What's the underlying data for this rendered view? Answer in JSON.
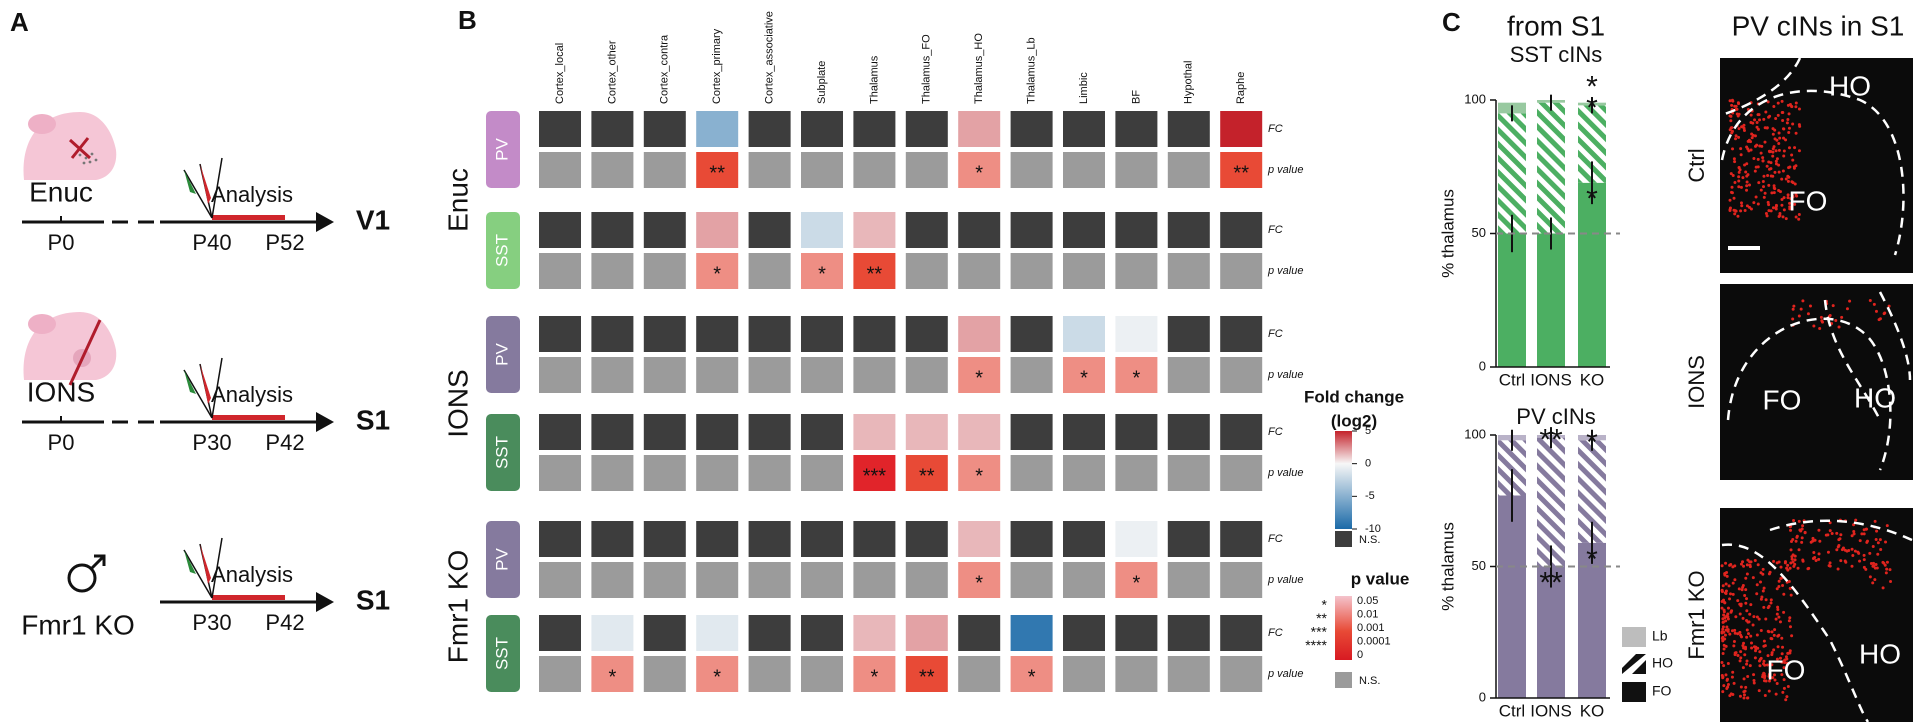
{
  "panel_a": {
    "label": "A",
    "rows": [
      {
        "name": "Enuc",
        "start": "P0",
        "t1": "P40",
        "t2": "P52",
        "analysis": "Analysis",
        "area": "V1"
      },
      {
        "name": "IONS",
        "start": "P0",
        "t1": "P30",
        "t2": "P42",
        "analysis": "Analysis",
        "area": "S1"
      },
      {
        "name": "Fmr1 KO",
        "t1": "P30",
        "t2": "P42",
        "analysis": "Analysis",
        "area": "S1"
      }
    ]
  },
  "panel_b": {
    "label": "B",
    "columns": [
      "Cortex_local",
      "Cortex_other",
      "Cortex_contra",
      "Cortex_primary",
      "Cortex_associative",
      "Subplate",
      "Thalamus",
      "Thalamus_FO",
      "Thalamus_HO",
      "Thalamus_Lb",
      "Limbic",
      "BF",
      "Hypothal",
      "Raphe"
    ],
    "row_labels": {
      "fc": "FC",
      "p": "p value"
    },
    "groups": [
      {
        "name": "Enuc",
        "rows": [
          {
            "cell_type": "PV",
            "color": "#c38bc8",
            "fc": [
              null,
              null,
              null,
              -5,
              null,
              null,
              null,
              null,
              2,
              null,
              null,
              null,
              null,
              5
            ],
            "p": [
              null,
              null,
              null,
              "**",
              null,
              null,
              null,
              null,
              "*",
              null,
              null,
              null,
              null,
              "**"
            ]
          },
          {
            "cell_type": "SST",
            "color": "#86cf80",
            "fc": [
              null,
              null,
              null,
              2,
              null,
              -2,
              1.5,
              null,
              null,
              null,
              null,
              null,
              null,
              null
            ],
            "p": [
              null,
              null,
              null,
              "*",
              null,
              "*",
              "**",
              null,
              null,
              null,
              null,
              null,
              null,
              null
            ]
          }
        ]
      },
      {
        "name": "IONS",
        "rows": [
          {
            "cell_type": "PV",
            "color": "#857a9e",
            "fc": [
              null,
              null,
              null,
              null,
              null,
              null,
              null,
              null,
              2,
              null,
              -2,
              -0.5,
              null,
              null
            ],
            "p": [
              null,
              null,
              null,
              null,
              null,
              null,
              null,
              null,
              "*",
              null,
              "*",
              "*",
              null,
              null
            ]
          },
          {
            "cell_type": "SST",
            "color": "#4a8c5c",
            "fc": [
              null,
              null,
              null,
              null,
              null,
              null,
              1.5,
              1.5,
              1.5,
              null,
              null,
              null,
              null,
              null
            ],
            "p": [
              null,
              null,
              null,
              null,
              null,
              null,
              "***",
              "**",
              "*",
              null,
              null,
              null,
              null,
              null
            ]
          }
        ]
      },
      {
        "name": "Fmr1 KO",
        "rows": [
          {
            "cell_type": "PV",
            "color": "#857a9e",
            "fc": [
              null,
              null,
              null,
              null,
              null,
              null,
              null,
              null,
              1.5,
              null,
              null,
              -0.5,
              null,
              null
            ],
            "p": [
              null,
              null,
              null,
              null,
              null,
              null,
              null,
              null,
              "*",
              null,
              null,
              "*",
              null,
              null
            ]
          },
          {
            "cell_type": "SST",
            "color": "#4a8c5c",
            "fc": [
              null,
              -1,
              null,
              -1,
              null,
              null,
              1.5,
              2,
              null,
              -9,
              null,
              null,
              null,
              null
            ],
            "p": [
              null,
              "*",
              null,
              "*",
              null,
              null,
              "*",
              "**",
              null,
              "*",
              null,
              null,
              null,
              null
            ]
          }
        ]
      }
    ],
    "fc_legend": {
      "title_lines": [
        "Fold change",
        "(log2)"
      ],
      "lim": [
        -10,
        5
      ],
      "ticks": [
        5,
        0,
        -5,
        -10
      ],
      "ns": "N.S.",
      "ns_color": "#3d3d3d",
      "low_color": "#1b6aa8",
      "mid_color": "#f7f7f7",
      "high_color": "#c4222b"
    },
    "p_legend": {
      "title": "p value",
      "stars": [
        "*",
        "**",
        "***",
        "****"
      ],
      "labels": [
        0.05,
        0.01,
        0.001,
        0.0001,
        0
      ],
      "colors": [
        "#ee8e84",
        "#e84a36",
        "#e1242a",
        "#d81a22"
      ],
      "ns": "N.S.",
      "ns_color": "#9b9b9b"
    }
  },
  "panel_c": {
    "label": "C",
    "title": "from S1",
    "charts": [
      {
        "title": "SST cINs",
        "ylabel": "% thalamus",
        "categories": [
          "Ctrl",
          "IONS",
          "KO"
        ],
        "ylim": [
          0,
          100
        ],
        "yticks": [
          0,
          50,
          100
        ],
        "reference": 50,
        "series": [
          {
            "name": "FO",
            "color": "#4caf62",
            "values": [
              50,
              50,
              69
            ],
            "errors": [
              7,
              6,
              8
            ],
            "stars": [
              null,
              null,
              "*"
            ]
          },
          {
            "name": "HO",
            "color": "#4caf62",
            "hatch": true,
            "values": [
              45,
              49,
              29
            ],
            "errors": [
              3,
              3,
              3
            ],
            "stars": [
              null,
              null,
              "*"
            ]
          },
          {
            "name": "Lb",
            "color": "#98c9a0",
            "values": [
              4,
              1,
              1
            ],
            "stars": [
              null,
              null,
              "*"
            ]
          }
        ]
      },
      {
        "title": "PV cINs",
        "ylabel": "% thalamus",
        "categories": [
          "Ctrl",
          "IONS",
          "KO"
        ],
        "ylim": [
          0,
          100
        ],
        "yticks": [
          0,
          50,
          100
        ],
        "reference": 50,
        "series": [
          {
            "name": "FO",
            "color": "#857a9e",
            "values": [
              77,
              50,
              59
            ],
            "errors": [
              10,
              8,
              8
            ],
            "stars": [
              null,
              "**",
              "*"
            ]
          },
          {
            "name": "HO",
            "color": "#857a9e",
            "hatch": true,
            "values": [
              21,
              49,
              39
            ],
            "errors": [
              4,
              4,
              4
            ],
            "stars": [
              null,
              "**",
              "*"
            ]
          },
          {
            "name": "Lb",
            "color": "#b9b2c8",
            "values": [
              2,
              1,
              2
            ]
          }
        ]
      }
    ],
    "images": {
      "title": "PV cINs in S1",
      "panels": [
        {
          "label": "Ctrl",
          "regions": [
            "HO",
            "FO"
          ]
        },
        {
          "label": "IONS",
          "regions": [
            "FO",
            "HO"
          ]
        },
        {
          "label": "Fmr1 KO",
          "regions": [
            "FO",
            "HO"
          ]
        }
      ]
    }
  }
}
